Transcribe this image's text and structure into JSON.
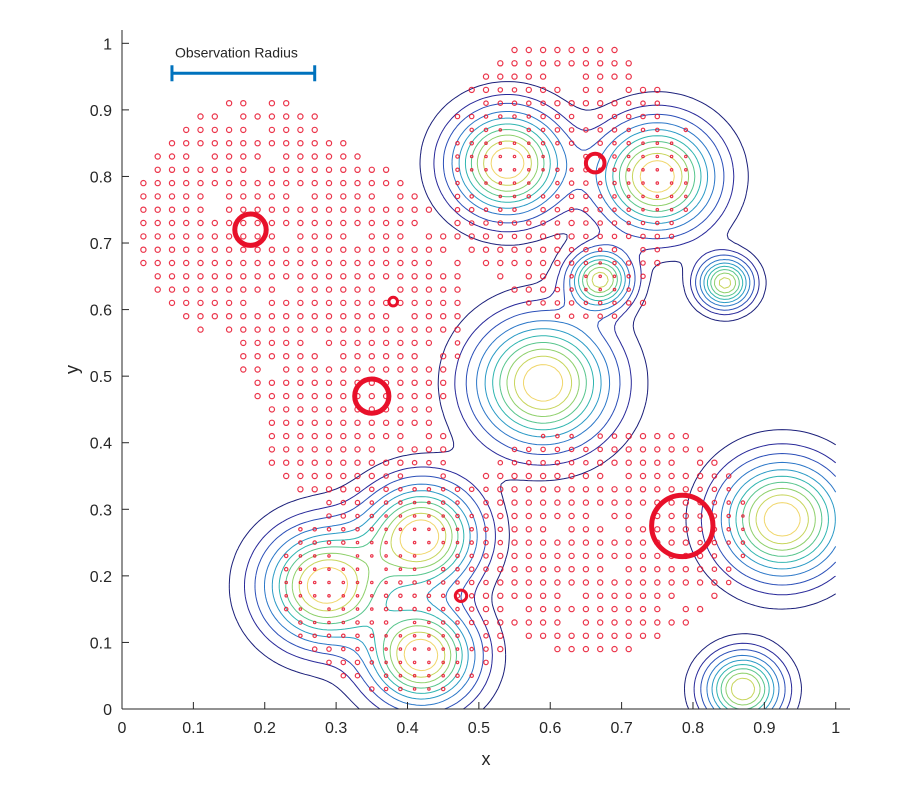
{
  "chart_data": {
    "type": "scatter",
    "title": "",
    "xlabel": "x",
    "ylabel": "y",
    "xlim": [
      0,
      1.02
    ],
    "ylim": [
      0,
      1.02
    ],
    "xticks": [
      0,
      0.1,
      0.2,
      0.3,
      0.4,
      0.5,
      0.6,
      0.7,
      0.8,
      0.9,
      1
    ],
    "yticks": [
      0,
      0.1,
      0.2,
      0.3,
      0.4,
      0.5,
      0.6,
      0.7,
      0.8,
      0.9,
      1
    ],
    "xtick_labels": [
      "0",
      "0.1",
      "0.2",
      "0.3",
      "0.4",
      "0.5",
      "0.6",
      "0.7",
      "0.8",
      "0.9",
      "1"
    ],
    "ytick_labels": [
      "0",
      "0.1",
      "0.2",
      "0.3",
      "0.4",
      "0.5",
      "0.6",
      "0.7",
      "0.8",
      "0.9",
      "1"
    ],
    "grid": false,
    "annotation": {
      "text": "Observation Radius",
      "x_start": 0.07,
      "x_end": 0.27,
      "y": 0.955,
      "color": "#0072bd"
    },
    "marker_color": "#e8102a",
    "large_circles": [
      {
        "x": 0.18,
        "y": 0.72,
        "r": 0.022
      },
      {
        "x": 0.35,
        "y": 0.47,
        "r": 0.024
      },
      {
        "x": 0.785,
        "y": 0.275,
        "r": 0.043
      },
      {
        "x": 0.663,
        "y": 0.82,
        "r": 0.013
      },
      {
        "x": 0.475,
        "y": 0.17,
        "r": 0.008
      },
      {
        "x": 0.38,
        "y": 0.612,
        "r": 0.006
      }
    ],
    "contour_peaks": [
      {
        "x": 0.54,
        "y": 0.82,
        "s": 0.05,
        "a": 1.0
      },
      {
        "x": 0.75,
        "y": 0.8,
        "s": 0.052,
        "a": 1.0
      },
      {
        "x": 0.67,
        "y": 0.645,
        "s": 0.028,
        "a": 0.85
      },
      {
        "x": 0.845,
        "y": 0.64,
        "s": 0.024,
        "a": 0.85
      },
      {
        "x": 0.59,
        "y": 0.49,
        "s": 0.06,
        "a": 1.0
      },
      {
        "x": 0.42,
        "y": 0.26,
        "s": 0.05,
        "a": 1.0
      },
      {
        "x": 0.285,
        "y": 0.185,
        "s": 0.055,
        "a": 1.0
      },
      {
        "x": 0.42,
        "y": 0.08,
        "s": 0.048,
        "a": 1.0
      },
      {
        "x": 0.925,
        "y": 0.285,
        "s": 0.055,
        "a": 1.0
      },
      {
        "x": 0.87,
        "y": 0.03,
        "s": 0.034,
        "a": 0.9
      }
    ],
    "marker_regions": [
      {
        "x": 0.02,
        "y": 0.54,
        "w": 0.34,
        "h": 0.38
      },
      {
        "x": 0.16,
        "y": 0.35,
        "w": 0.32,
        "h": 0.48
      },
      {
        "x": 0.2,
        "y": 0.3,
        "w": 0.27,
        "h": 0.2
      },
      {
        "x": 0.22,
        "y": 0.02,
        "w": 0.35,
        "h": 0.34
      },
      {
        "x": 0.45,
        "y": 0.6,
        "w": 0.35,
        "h": 0.41
      },
      {
        "x": 0.55,
        "y": 0.58,
        "w": 0.2,
        "h": 0.12
      },
      {
        "x": 0.48,
        "y": 0.08,
        "w": 0.35,
        "h": 0.35
      },
      {
        "x": 0.6,
        "y": 0.12,
        "w": 0.28,
        "h": 0.3
      }
    ]
  }
}
